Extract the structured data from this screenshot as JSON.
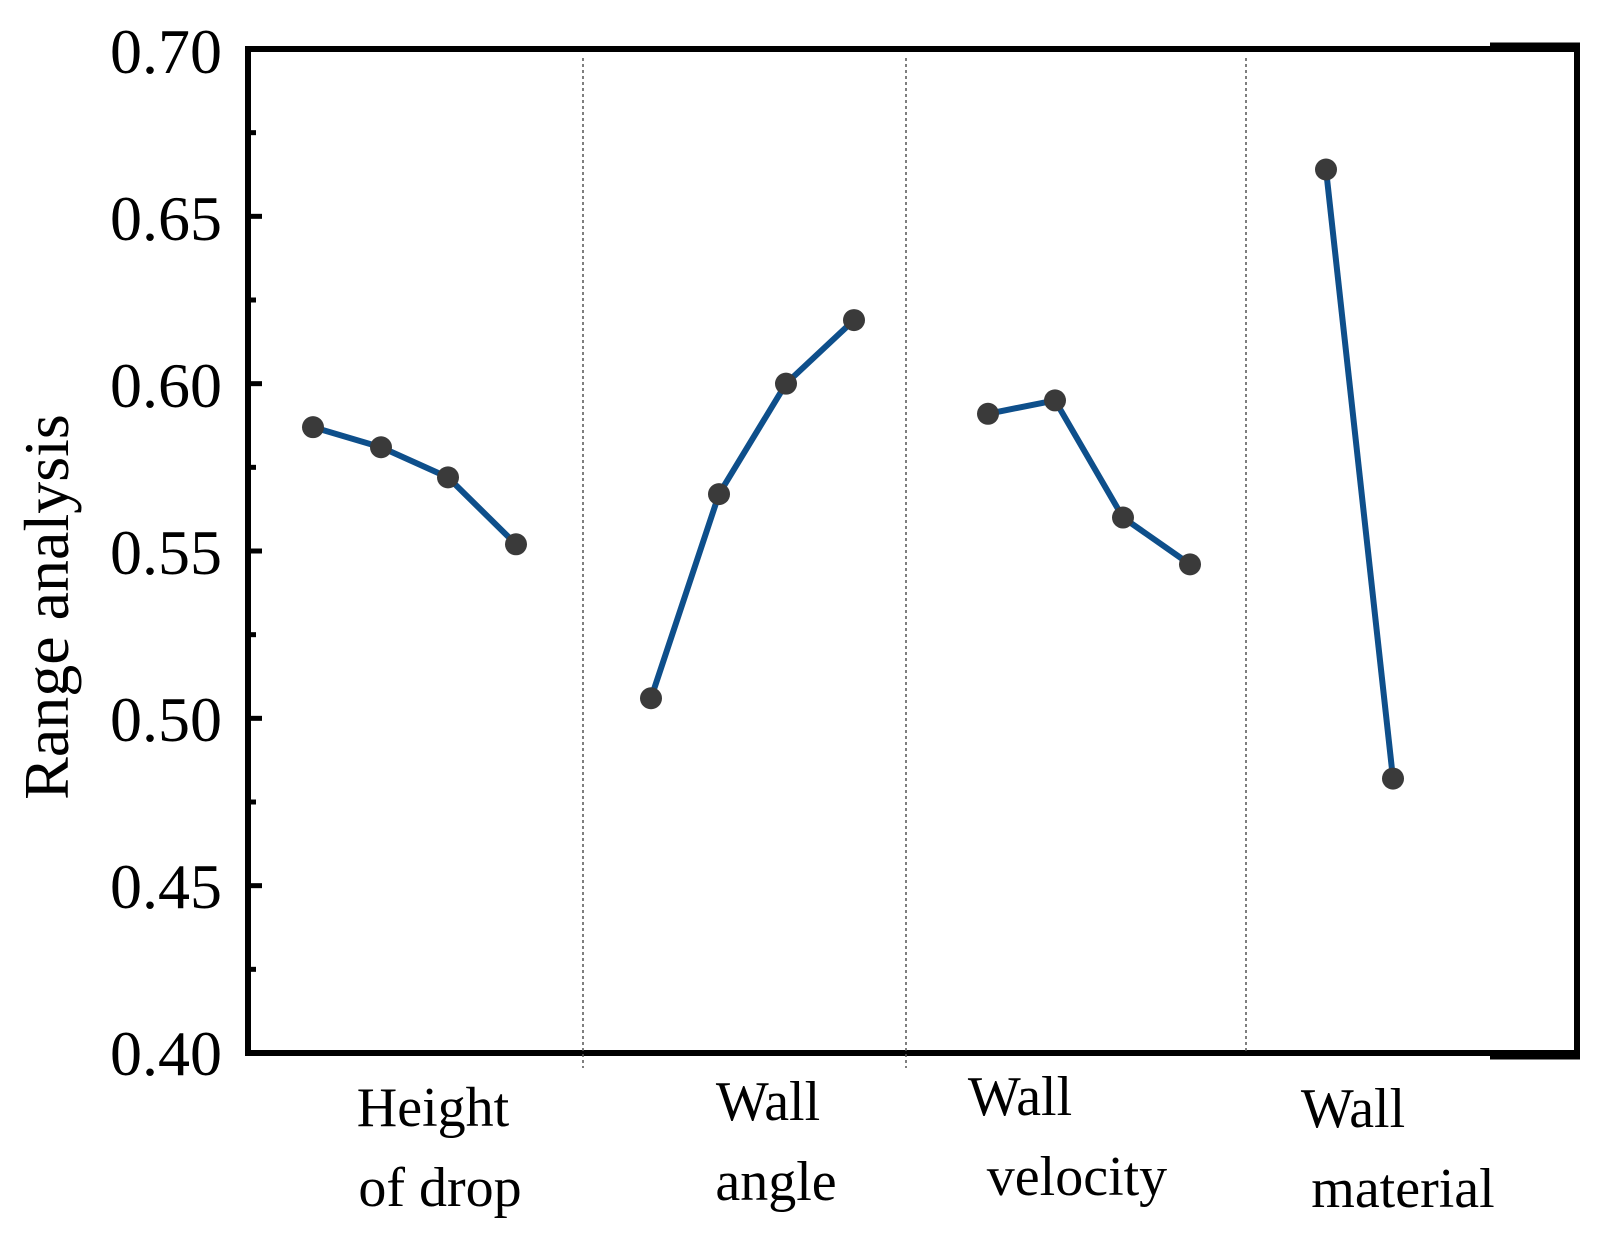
{
  "chart_data": {
    "type": "line",
    "title": "",
    "xlabel": "",
    "ylabel": "Range analysis",
    "ylim": [
      0.4,
      0.7
    ],
    "yticks": [
      "0.40",
      "0.45",
      "0.50",
      "0.55",
      "0.60",
      "0.65",
      "0.70"
    ],
    "line_color": "#0e4f8b",
    "marker_color": "#3a3a3a",
    "grid": false,
    "groups": [
      {
        "name": "Height of drop",
        "label_lines": [
          "Height",
          "of drop"
        ],
        "values": [
          0.587,
          0.581,
          0.572,
          0.552
        ]
      },
      {
        "name": "Wall angle",
        "label_lines": [
          "Wall",
          "angle"
        ],
        "values": [
          0.506,
          0.567,
          0.6,
          0.619
        ]
      },
      {
        "name": "Wall velocity",
        "label_lines": [
          "Wall",
          "velocity"
        ],
        "values": [
          0.591,
          0.595,
          0.56,
          0.546
        ]
      },
      {
        "name": "Wall material",
        "label_lines": [
          "Wall",
          "material"
        ],
        "values": [
          0.664,
          0.482
        ]
      }
    ]
  }
}
